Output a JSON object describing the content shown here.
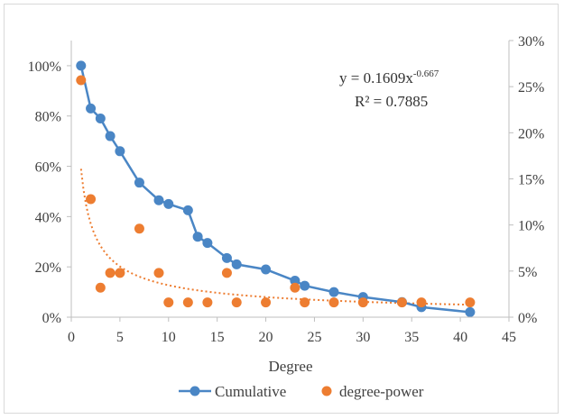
{
  "chart_data": {
    "type": "line",
    "xlabel": "Degree",
    "x_axis": {
      "min": 0,
      "max": 45,
      "ticks": [
        "0",
        "5",
        "10",
        "15",
        "20",
        "25",
        "30",
        "35",
        "40",
        "45"
      ]
    },
    "y_left": {
      "min": 0,
      "max": 1.1,
      "ticks": [
        "0%",
        "20%",
        "40%",
        "60%",
        "80%",
        "100%"
      ]
    },
    "y_right": {
      "min": 0,
      "max": 0.3,
      "ticks": [
        "0%",
        "5%",
        "10%",
        "15%",
        "20%",
        "25%",
        "30%"
      ]
    },
    "grid": false,
    "legend_position": "bottom",
    "series": [
      {
        "name": "Cumulative",
        "type": "line",
        "axis": "left",
        "color": "#4a86c5",
        "x": [
          1,
          2,
          3,
          4,
          5,
          7,
          9,
          10,
          12,
          13,
          14,
          16,
          17,
          20,
          23,
          24,
          27,
          30,
          34,
          36,
          41
        ],
        "y": [
          1.0,
          0.83,
          0.79,
          0.72,
          0.66,
          0.535,
          0.465,
          0.45,
          0.425,
          0.32,
          0.295,
          0.235,
          0.21,
          0.19,
          0.145,
          0.125,
          0.1,
          0.08,
          0.06,
          0.04,
          0.02
        ]
      },
      {
        "name": "degree-power",
        "type": "scatter",
        "axis": "right",
        "color": "#ed7d31",
        "x": [
          1,
          2,
          3,
          4,
          5,
          7,
          9,
          10,
          12,
          14,
          16,
          17,
          20,
          23,
          24,
          27,
          30,
          34,
          36,
          41
        ],
        "y": [
          0.257,
          0.128,
          0.032,
          0.048,
          0.048,
          0.096,
          0.048,
          0.016,
          0.016,
          0.016,
          0.048,
          0.016,
          0.016,
          0.032,
          0.016,
          0.016,
          0.016,
          0.016,
          0.016,
          0.016
        ]
      },
      {
        "type": "trendline",
        "axis": "right",
        "color": "#ed7d31",
        "style": "dotted",
        "coefficient": 0.1609,
        "exponent": -0.667,
        "x_range": [
          1,
          41
        ]
      }
    ],
    "annotations": {
      "equation_base": "y = 0.1609x",
      "equation_exp": "-0.667",
      "r_squared": "R² = 0.7885"
    }
  }
}
